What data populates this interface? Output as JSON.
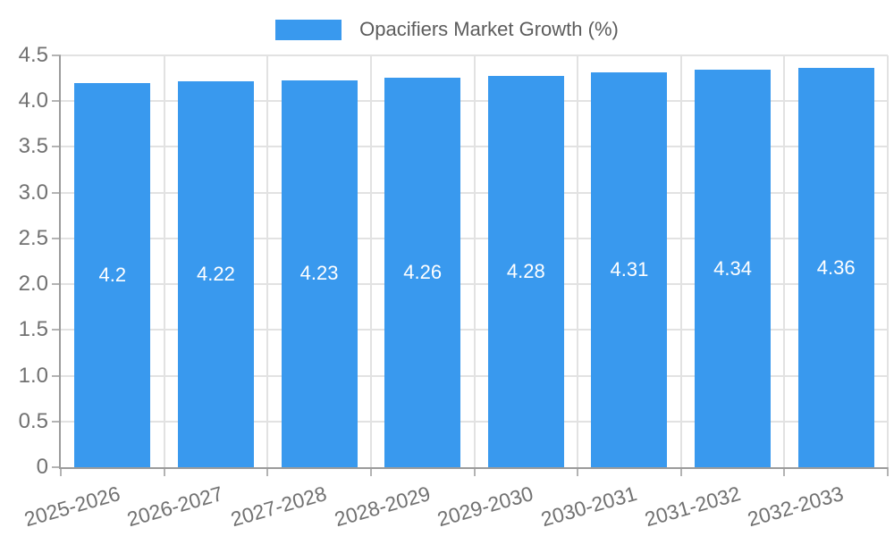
{
  "legend": {
    "label": "Opacifiers Market Growth (%)"
  },
  "colors": {
    "bar": "#3999ee",
    "grid": "#e2e2e2",
    "axis": "#9b9b9b",
    "tick": "#b3b3b3",
    "axis_text": "#717171",
    "legend_text": "#5c5c5c",
    "value_text": "#ffffff",
    "background": "#ffffff"
  },
  "chart_data": {
    "type": "bar",
    "title": "Opacifiers Market Growth (%)",
    "categories": [
      "2025-2026",
      "2026-2027",
      "2027-2028",
      "2028-2029",
      "2029-2030",
      "2030-2031",
      "2031-2032",
      "2032-2033"
    ],
    "values": [
      4.2,
      4.22,
      4.23,
      4.26,
      4.28,
      4.31,
      4.34,
      4.36
    ],
    "value_labels": [
      "4.2",
      "4.22",
      "4.23",
      "4.26",
      "4.28",
      "4.31",
      "4.34",
      "4.36"
    ],
    "xlabel": "",
    "ylabel": "",
    "ylim": [
      0,
      4.5
    ],
    "y_ticks": [
      0,
      0.5,
      1.0,
      1.5,
      2.0,
      2.5,
      3.0,
      3.5,
      4.0,
      4.5
    ],
    "y_tick_labels": [
      "0",
      "0.5",
      "1.0",
      "1.5",
      "2.0",
      "2.5",
      "3.0",
      "3.5",
      "4.0",
      "4.5"
    ],
    "grid": true,
    "legend_position": "top",
    "value_label_position": "middle-of-bar",
    "x_label_rotation_deg": -16
  }
}
